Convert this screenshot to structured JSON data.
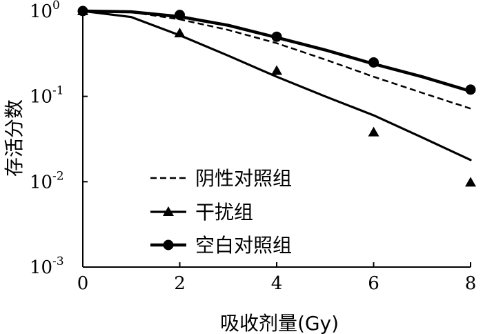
{
  "chart_data": {
    "type": "line",
    "xlabel": "吸收剂量(Gy)",
    "ylabel": "存活分数",
    "xlim": [
      0,
      8
    ],
    "ylim": [
      0.001,
      1
    ],
    "yscale": "log",
    "grid": false,
    "legend_position": "bottom-left",
    "x_ticks": [
      "0",
      "2",
      "4",
      "6",
      "8"
    ],
    "y_ticks": [
      {
        "value": 1,
        "base": "10",
        "exp": "0"
      },
      {
        "value": 0.1,
        "base": "10",
        "exp": "-1"
      },
      {
        "value": 0.01,
        "base": "10",
        "exp": "-2"
      },
      {
        "value": 0.001,
        "base": "10",
        "exp": "-3"
      }
    ],
    "series": [
      {
        "name": "阴性对照组",
        "style": "dashed",
        "marker": "none",
        "curve_x": [
          0,
          1,
          2,
          3,
          4,
          5,
          6,
          7,
          8
        ],
        "curve_y": [
          1.0,
          0.97,
          0.8,
          0.6,
          0.42,
          0.27,
          0.17,
          0.11,
          0.072
        ],
        "points_x": [],
        "points_y": []
      },
      {
        "name": "干扰组",
        "style": "solid",
        "marker": "triangle",
        "curve_x": [
          0,
          1,
          2,
          3,
          4,
          5,
          6,
          7,
          8
        ],
        "curve_y": [
          1.0,
          0.85,
          0.52,
          0.3,
          0.17,
          0.1,
          0.06,
          0.033,
          0.018
        ],
        "points_x": [
          0,
          2,
          4,
          6,
          8
        ],
        "points_y": [
          1.0,
          0.55,
          0.2,
          0.038,
          0.0098
        ]
      },
      {
        "name": "空白对照组",
        "style": "solid-thick",
        "marker": "circle",
        "curve_x": [
          0,
          1,
          2,
          3,
          4,
          5,
          6,
          7,
          8
        ],
        "curve_y": [
          1.0,
          0.98,
          0.86,
          0.68,
          0.49,
          0.35,
          0.24,
          0.17,
          0.115
        ],
        "points_x": [
          0,
          2,
          4,
          6,
          8
        ],
        "points_y": [
          1.0,
          0.9,
          0.5,
          0.25,
          0.12
        ]
      }
    ],
    "colors": {
      "line": "#000000",
      "background": "#ffffff"
    }
  }
}
